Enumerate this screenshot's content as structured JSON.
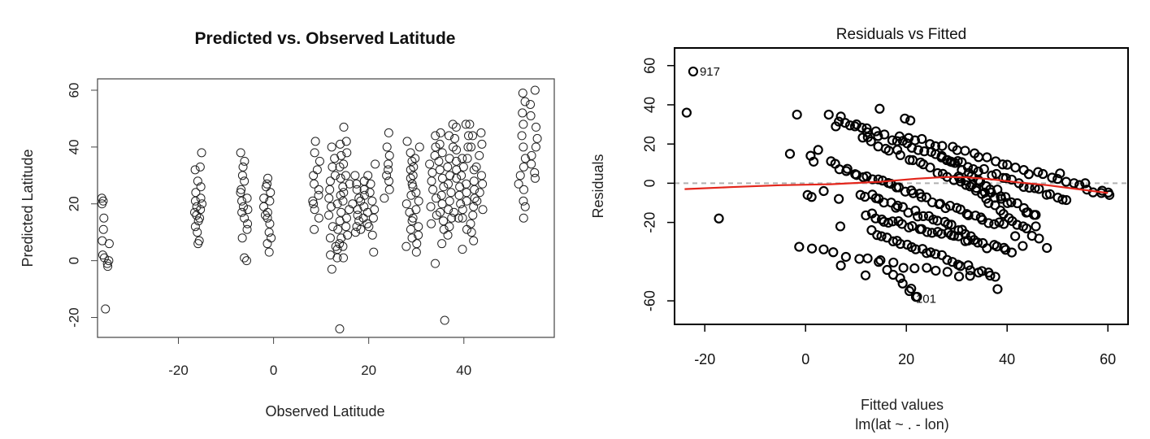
{
  "chart_data": [
    {
      "type": "scatter",
      "title": "Predicted vs. Observed Latitude",
      "xlabel": "Observed Latitude",
      "ylabel": "Predicted Latitude",
      "xlim": [
        -37,
        59
      ],
      "ylim": [
        -27,
        64
      ],
      "xticks": [
        -20,
        0,
        20,
        40
      ],
      "yticks": [
        -20,
        0,
        20,
        40,
        60
      ],
      "grid": false,
      "groups": [
        {
          "x": -35.3,
          "values": [
            22,
            21,
            20,
            15,
            11,
            7,
            6,
            2,
            1,
            0,
            -1,
            -2,
            -17
          ]
        },
        {
          "x": -15.8,
          "values": [
            38,
            33,
            32,
            28,
            26,
            24,
            22,
            21,
            20,
            19,
            18,
            17,
            16,
            15,
            14,
            12,
            10,
            7,
            6
          ]
        },
        {
          "x": -6.2,
          "values": [
            38,
            35,
            33,
            30,
            28,
            25,
            24,
            22,
            21,
            19,
            18,
            17,
            15,
            13,
            11,
            8,
            1,
            0
          ]
        },
        {
          "x": -1.3,
          "values": [
            29,
            27,
            26,
            24,
            22,
            21,
            19,
            17,
            16,
            15,
            13,
            10,
            8,
            6,
            3
          ]
        },
        {
          "x": 9.0,
          "values": [
            42,
            38,
            35,
            32,
            30,
            27,
            25,
            23,
            21,
            20,
            18,
            15,
            11
          ]
        },
        {
          "x": 12.3,
          "values": [
            40,
            36,
            33,
            30,
            28,
            25,
            22,
            19,
            16,
            12,
            8,
            5,
            2,
            -3
          ]
        },
        {
          "x": 13.8,
          "values": [
            41,
            37,
            33,
            29,
            26,
            23,
            20,
            17,
            14,
            11,
            8,
            6,
            4,
            1,
            -24
          ]
        },
        {
          "x": 15.3,
          "values": [
            47,
            42,
            38,
            34,
            30,
            27,
            24,
            21,
            18,
            15,
            12,
            9,
            5,
            1
          ]
        },
        {
          "x": 17.4,
          "values": [
            30,
            27,
            25,
            22,
            20,
            18,
            16,
            14,
            12,
            10
          ]
        },
        {
          "x": 19.0,
          "values": [
            28,
            25,
            23,
            21,
            19,
            17,
            15,
            13,
            11
          ]
        },
        {
          "x": 20.6,
          "values": [
            34,
            30,
            27,
            24,
            21,
            18,
            15,
            12,
            9,
            3
          ]
        },
        {
          "x": 23.7,
          "values": [
            45,
            40,
            37,
            34,
            32,
            30,
            28,
            25,
            22
          ]
        },
        {
          "x": 28.6,
          "values": [
            42,
            38,
            35,
            32,
            29,
            26,
            23,
            20,
            17,
            14,
            11,
            8,
            5
          ]
        },
        {
          "x": 29.9,
          "values": [
            40,
            36,
            33,
            30,
            27,
            24,
            21,
            18,
            15,
            12,
            9,
            6,
            3
          ]
        },
        {
          "x": 33.5,
          "values": [
            44,
            40,
            37,
            34,
            31,
            28,
            25,
            22,
            19,
            16,
            13,
            -1
          ]
        },
        {
          "x": 35.2,
          "values": [
            45,
            41,
            38,
            35,
            32,
            29,
            26,
            23,
            20,
            17,
            14,
            11,
            6,
            -21
          ]
        },
        {
          "x": 37.0,
          "values": [
            48,
            44,
            40,
            36,
            33,
            30,
            27,
            24,
            21,
            18,
            15,
            12,
            9
          ]
        },
        {
          "x": 38.5,
          "values": [
            47,
            43,
            39,
            35,
            32,
            29,
            26,
            23,
            20,
            17,
            15
          ]
        },
        {
          "x": 40.2,
          "values": [
            48,
            44,
            40,
            36,
            33,
            30,
            27,
            24,
            21,
            18,
            15,
            11,
            4
          ]
        },
        {
          "x": 41.5,
          "values": [
            48,
            44,
            40,
            36,
            32,
            28,
            25,
            22,
            19,
            16,
            13,
            10,
            7
          ]
        },
        {
          "x": 43.2,
          "values": [
            45,
            41,
            37,
            33,
            30,
            27,
            24,
            21,
            18
          ]
        },
        {
          "x": 52.3,
          "values": [
            59,
            56,
            52,
            48,
            44,
            40,
            36,
            33,
            30,
            27,
            25,
            21,
            19,
            15
          ]
        },
        {
          "x": 54.7,
          "values": [
            60,
            55,
            51,
            47,
            43,
            40,
            37,
            34,
            31,
            29
          ]
        }
      ]
    },
    {
      "type": "scatter",
      "title": "Residuals vs Fitted",
      "xlabel": "Fitted values",
      "xlabel2": "lm(lat ~ . - lon)",
      "ylabel": "Residuals",
      "xlim": [
        -26,
        64
      ],
      "ylim": [
        -72,
        69
      ],
      "xticks": [
        -20,
        0,
        20,
        40,
        60
      ],
      "yticks": [
        -60,
        -20,
        0,
        20,
        40,
        60
      ],
      "grid": false,
      "reference_line_y": 0,
      "smooth_line": {
        "color": "#e3261c",
        "x": [
          -24,
          -15,
          -5,
          5,
          15,
          22,
          28,
          32,
          37,
          42,
          48,
          54,
          60
        ],
        "y": [
          -3,
          -2,
          -1,
          -0.5,
          0.8,
          2.3,
          3.2,
          3.0,
          2.0,
          0.5,
          -1.0,
          -3.0,
          -5.0
        ]
      },
      "bands": [
        {
          "x0": 7,
          "x1": 52,
          "y0": 32,
          "y1": -9,
          "n": 42
        },
        {
          "x0": 11,
          "x1": 40,
          "y0": 24,
          "y1": -10,
          "n": 26
        },
        {
          "x0": 19,
          "x1": 60,
          "y0": 25,
          "y1": -6,
          "n": 30
        },
        {
          "x0": 5,
          "x1": 39,
          "y0": 10,
          "y1": -22,
          "n": 38
        },
        {
          "x0": 11,
          "x1": 33,
          "y0": -5,
          "y1": -26,
          "n": 24
        },
        {
          "x0": 12,
          "x1": 41,
          "y0": -16,
          "y1": -35,
          "n": 32
        },
        {
          "x0": 13,
          "x1": 38,
          "y0": -25,
          "y1": -48,
          "n": 26
        },
        {
          "x0": -1,
          "x1": 33,
          "y0": -33,
          "y1": -48,
          "n": 16
        },
        {
          "x0": 15,
          "x1": 22,
          "y0": -40,
          "y1": -58,
          "n": 7
        },
        {
          "x0": 27,
          "x1": 46,
          "y0": 14,
          "y1": -17,
          "n": 20
        },
        {
          "x0": 30,
          "x1": 46,
          "y0": 4,
          "y1": -28,
          "n": 18
        }
      ],
      "points": [
        {
          "x": -22.3,
          "y": 57
        },
        {
          "x": -23.6,
          "y": 36
        },
        {
          "x": -17.2,
          "y": -18
        },
        {
          "x": -1.7,
          "y": 35
        },
        {
          "x": 4.6,
          "y": 35
        },
        {
          "x": 7.0,
          "y": 34
        },
        {
          "x": 6.0,
          "y": 29
        },
        {
          "x": 9.8,
          "y": 29
        },
        {
          "x": 12.2,
          "y": 26
        },
        {
          "x": 14.7,
          "y": 38
        },
        {
          "x": 19.7,
          "y": 33
        },
        {
          "x": 20.8,
          "y": 32
        },
        {
          "x": -3.1,
          "y": 15
        },
        {
          "x": 1.0,
          "y": 14
        },
        {
          "x": 2.5,
          "y": 17
        },
        {
          "x": 1.6,
          "y": 11
        },
        {
          "x": 0.4,
          "y": -6
        },
        {
          "x": 1.2,
          "y": -7
        },
        {
          "x": 3.6,
          "y": -4
        },
        {
          "x": 6.6,
          "y": -8
        },
        {
          "x": 6.9,
          "y": -22
        },
        {
          "x": 7.0,
          "y": -42
        },
        {
          "x": 11.9,
          "y": -47
        },
        {
          "x": 20.6,
          "y": -55
        },
        {
          "x": 21.9,
          "y": -58
        },
        {
          "x": 38.1,
          "y": -54
        },
        {
          "x": 41.6,
          "y": -27
        },
        {
          "x": 43.1,
          "y": -32
        },
        {
          "x": 47.9,
          "y": -33
        },
        {
          "x": 45.7,
          "y": -22
        },
        {
          "x": 43.8,
          "y": -15
        },
        {
          "x": 50.5,
          "y": 5
        },
        {
          "x": 55.5,
          "y": 0
        },
        {
          "x": 58.7,
          "y": -5
        },
        {
          "x": 60.3,
          "y": -6
        }
      ],
      "labels": [
        {
          "text": "917",
          "x": -22.3,
          "y": 57
        },
        {
          "text": "101",
          "x": 20.6,
          "y": -59
        }
      ]
    }
  ]
}
